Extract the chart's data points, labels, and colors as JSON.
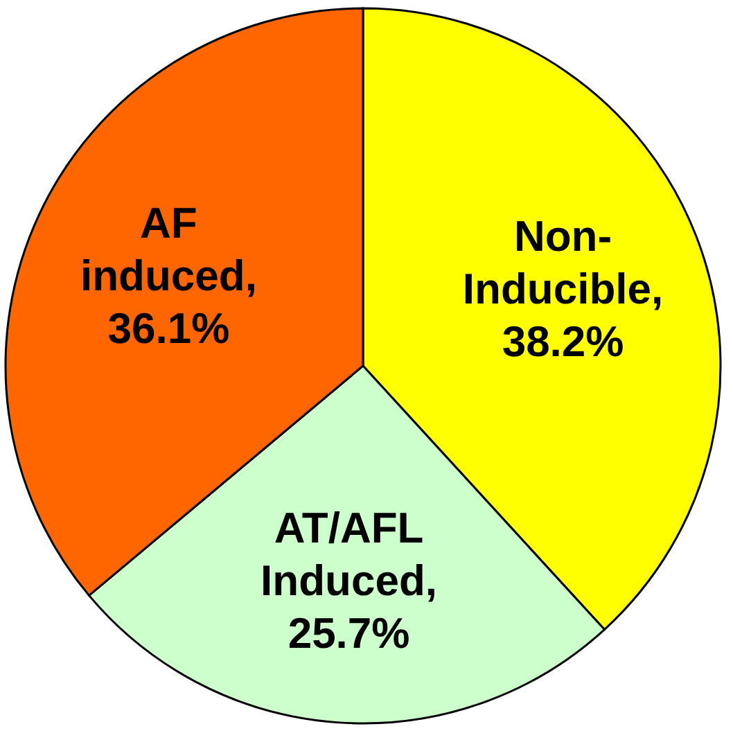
{
  "chart_data": {
    "type": "pie",
    "categories": [
      "Non-Inducible",
      "AT/AFL Induced",
      "AF induced"
    ],
    "values": [
      38.2,
      25.7,
      36.1
    ],
    "value_labels": [
      ", 38.2%",
      ", 25.7%",
      ", 36.1%"
    ],
    "colors": [
      "#ffff00",
      "#ccffcc",
      "#ff6600"
    ],
    "legend": false
  }
}
